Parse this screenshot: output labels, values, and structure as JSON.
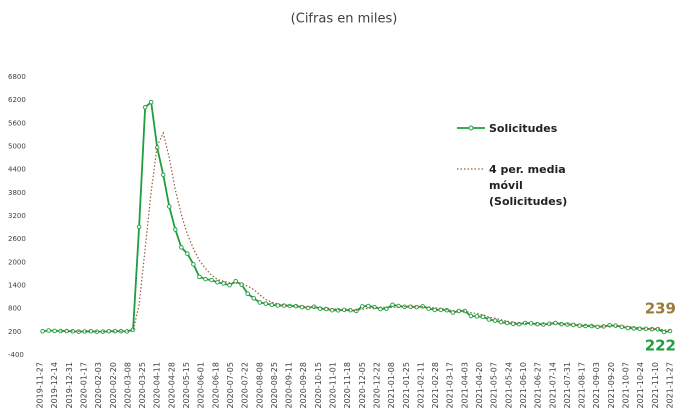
{
  "chart_data": {
    "type": "line",
    "subtitle": "(Cifras en miles)",
    "x": [
      "2019-11-30",
      "2019-12-07",
      "2019-12-14",
      "2019-12-21",
      "2019-12-28",
      "2020-01-04",
      "2020-01-11",
      "2020-01-18",
      "2020-01-25",
      "2020-02-01",
      "2020-02-08",
      "2020-02-15",
      "2020-02-22",
      "2020-02-29",
      "2020-03-07",
      "2020-03-14",
      "2020-03-21",
      "2020-03-28",
      "2020-04-04",
      "2020-04-11",
      "2020-04-18",
      "2020-04-25",
      "2020-05-02",
      "2020-05-09",
      "2020-05-16",
      "2020-05-23",
      "2020-05-30",
      "2020-06-06",
      "2020-06-13",
      "2020-06-20",
      "2020-06-27",
      "2020-07-04",
      "2020-07-11",
      "2020-07-18",
      "2020-07-25",
      "2020-08-01",
      "2020-08-08",
      "2020-08-15",
      "2020-08-22",
      "2020-08-29",
      "2020-09-05",
      "2020-09-12",
      "2020-09-19",
      "2020-09-26",
      "2020-10-03",
      "2020-10-10",
      "2020-10-17",
      "2020-10-24",
      "2020-10-31",
      "2020-11-07",
      "2020-11-14",
      "2020-11-21",
      "2020-11-28",
      "2020-12-05",
      "2020-12-12",
      "2020-12-19",
      "2020-12-26",
      "2021-01-02",
      "2021-01-09",
      "2021-01-16",
      "2021-01-23",
      "2021-01-30",
      "2021-02-06",
      "2021-02-13",
      "2021-02-20",
      "2021-02-27",
      "2021-03-06",
      "2021-03-13",
      "2021-03-20",
      "2021-03-27",
      "2021-04-03",
      "2021-04-10",
      "2021-04-17",
      "2021-04-24",
      "2021-05-01",
      "2021-05-08",
      "2021-05-15",
      "2021-05-22",
      "2021-05-29",
      "2021-06-05",
      "2021-06-12",
      "2021-06-19",
      "2021-06-26",
      "2021-07-03",
      "2021-07-10",
      "2021-07-17",
      "2021-07-24",
      "2021-07-31",
      "2021-08-07",
      "2021-08-14",
      "2021-08-21",
      "2021-08-28",
      "2021-09-04",
      "2021-09-11",
      "2021-09-18",
      "2021-09-25",
      "2021-10-02",
      "2021-10-09",
      "2021-10-16",
      "2021-10-23",
      "2021-10-30",
      "2021-11-06",
      "2021-11-13",
      "2021-11-20",
      "2021-11-27"
    ],
    "series": [
      {
        "name": "Solicitudes",
        "color": "#1f9d3f",
        "style": "solid",
        "markers": true,
        "values": [
          215,
          235,
          225,
          222,
          220,
          214,
          205,
          210,
          214,
          203,
          205,
          215,
          219,
          217,
          211,
          256,
          2920,
          6015,
          6149,
          4970,
          4267,
          3446,
          2849,
          2387,
          2226,
          1948,
          1623,
          1566,
          1540,
          1482,
          1452,
          1408,
          1510,
          1422,
          1186,
          1070,
          960,
          930,
          900,
          883,
          880,
          870,
          866,
          840,
          820,
          850,
          800,
          790,
          760,
          757,
          770,
          760,
          740,
          860,
          870,
          840,
          790,
          800,
          900,
          870,
          850,
          850,
          840,
          860,
          800,
          770,
          770,
          760,
          700,
          740,
          740,
          610,
          600,
          590,
          520,
          490,
          450,
          430,
          410,
          400,
          430,
          420,
          400,
          390,
          410,
          430,
          400,
          390,
          380,
          360,
          350,
          350,
          330,
          340,
          370,
          360,
          330,
          300,
          290,
          280,
          280,
          270,
          270,
          194,
          222
        ]
      },
      {
        "name": "4 per. media móvil (Solicitudes)",
        "color": "#9a5a3a",
        "style": "dotted",
        "markers": false,
        "end_label_color": "#9c7b3a",
        "values": [
          null,
          null,
          null,
          224,
          226,
          220,
          215,
          212,
          211,
          208,
          208,
          209,
          211,
          214,
          216,
          226,
          901,
          2351,
          3835,
          5014,
          5350,
          4708,
          3883,
          3237,
          2727,
          2353,
          2046,
          1841,
          1669,
          1553,
          1510,
          1471,
          1463,
          1448,
          1382,
          1297,
          1160,
          1037,
          965,
          918,
          898,
          883,
          875,
          864,
          849,
          844,
          828,
          815,
          800,
          777,
          769,
          762,
          757,
          783,
          808,
          828,
          840,
          825,
          833,
          840,
          855,
          868,
          853,
          850,
          838,
          818,
          800,
          775,
          750,
          743,
          735,
          698,
          673,
          635,
          580,
          550,
          513,
          473,
          445,
          423,
          418,
          415,
          413,
          410,
          405,
          408,
          408,
          408,
          400,
          383,
          370,
          360,
          348,
          343,
          348,
          350,
          350,
          340,
          320,
          300,
          288,
          280,
          275,
          254,
          239
        ]
      }
    ],
    "xlim": [
      "2019-11-27",
      "2021-11-27"
    ],
    "xticks": [
      "2019-11-27",
      "2019-12-14",
      "2019-12-31",
      "2020-01-17",
      "2020-02-03",
      "2020-02-20",
      "2020-03-08",
      "2020-03-25",
      "2020-04-11",
      "2020-04-28",
      "2020-05-15",
      "2020-06-01",
      "2020-06-18",
      "2020-07-05",
      "2020-07-22",
      "2020-08-08",
      "2020-08-25",
      "2020-09-11",
      "2020-09-28",
      "2020-10-15",
      "2020-11-01",
      "2020-11-18",
      "2020-12-05",
      "2020-12-22",
      "2021-01-08",
      "2021-01-25",
      "2021-02-11",
      "2021-02-28",
      "2021-03-17",
      "2021-04-03",
      "2021-04-20",
      "2021-05-07",
      "2021-05-24",
      "2021-06-10",
      "2021-06-27",
      "2021-07-14",
      "2021-07-31",
      "2021-08-17",
      "2021-09-03",
      "2021-09-20",
      "2021-10-07",
      "2021-10-24",
      "2021-11-10",
      "2021-11-27"
    ],
    "ylim": [
      -400,
      6800
    ],
    "yticks": [
      -400,
      200,
      800,
      1400,
      2000,
      2600,
      3200,
      3800,
      4400,
      5000,
      5600,
      6200,
      6800
    ],
    "grid": false,
    "legend": "right"
  }
}
